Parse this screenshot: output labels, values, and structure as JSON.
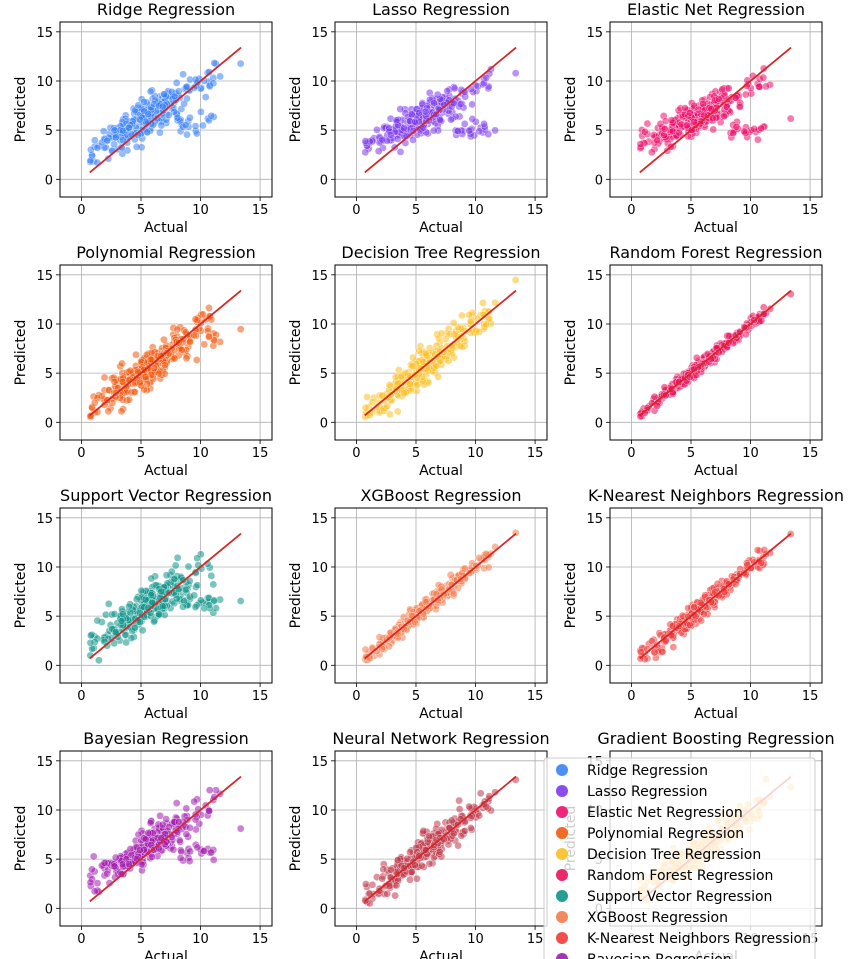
{
  "chart_data": {
    "type": "scatter",
    "xlabel": "Actual",
    "ylabel": "Predicted",
    "xlim": [
      -1.8,
      16.0
    ],
    "ylim": [
      -1.8,
      16.0
    ],
    "ticks": [
      0,
      5,
      10,
      15
    ],
    "grid": true,
    "legend_position": "lower-right",
    "reference_line": {
      "from": [
        0.7,
        0.7
      ],
      "to": [
        13.4,
        13.4
      ],
      "color": "#d62728"
    },
    "panels": [
      {
        "title": "Ridge Regression",
        "color": "#3b82f6",
        "model": "linear"
      },
      {
        "title": "Lasso Regression",
        "color": "#7c3aed",
        "model": "lasso"
      },
      {
        "title": "Elastic Net Regression",
        "color": "#ec0f6b",
        "model": "lasso"
      },
      {
        "title": "Polynomial Regression",
        "color": "#f05a0e",
        "model": "poly"
      },
      {
        "title": "Decision Tree Regression",
        "color": "#fbbf24",
        "model": "tree"
      },
      {
        "title": "Random Forest Regression",
        "color": "#e8115b",
        "model": "rf"
      },
      {
        "title": "Support Vector Regression",
        "color": "#0d9488",
        "model": "svr"
      },
      {
        "title": "XGBoost Regression",
        "color": "#f47c4c",
        "model": "xgb"
      },
      {
        "title": "K-Nearest Neighbors Regression",
        "color": "#ef3b3b",
        "model": "knn"
      },
      {
        "title": "Bayesian Regression",
        "color": "#a21caf",
        "model": "linear"
      },
      {
        "title": "Neural Network Regression",
        "color": "#c0394b",
        "model": "nn"
      },
      {
        "title": "Gradient Boosting Regression",
        "color": "#f59e0b",
        "model": "gb"
      }
    ],
    "legend": [
      {
        "label": "Ridge Regression",
        "color": "#3b82f6"
      },
      {
        "label": "Lasso Regression",
        "color": "#7c3aed"
      },
      {
        "label": "Elastic Net Regression",
        "color": "#ec0f6b"
      },
      {
        "label": "Polynomial Regression",
        "color": "#f05a0e"
      },
      {
        "label": "Decision Tree Regression",
        "color": "#fbbf24"
      },
      {
        "label": "Random Forest Regression",
        "color": "#e8115b"
      },
      {
        "label": "Support Vector Regression",
        "color": "#0d9488"
      },
      {
        "label": "XGBoost Regression",
        "color": "#f47c4c"
      },
      {
        "label": "K-Nearest Neighbors Regression",
        "color": "#ef3b3b"
      },
      {
        "label": "Bayesian Regression",
        "color": "#a21caf"
      }
    ]
  }
}
